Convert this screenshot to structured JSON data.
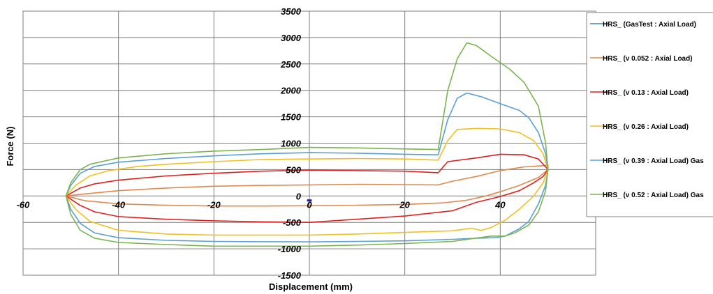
{
  "chart_data": {
    "type": "line",
    "title": "",
    "xlabel": "Displacement  (mm)",
    "ylabel": "Force  (N)",
    "xlim": [
      -60,
      60
    ],
    "ylim": [
      -1500,
      3500
    ],
    "x_ticks": [
      -60,
      -40,
      -20,
      0,
      20,
      40
    ],
    "x_tick_labels": [
      "-60",
      "-40",
      "-20",
      "0",
      "20",
      "40"
    ],
    "y_ticks": [
      -1500,
      -1000,
      -500,
      0,
      500,
      1000,
      1500,
      2000,
      2500,
      3000,
      3500
    ],
    "y_tick_labels": [
      "-1500",
      "-1000",
      "-500",
      "0",
      "500",
      "1000",
      "1500",
      "2000",
      "2500",
      "3000",
      "3500"
    ],
    "grid": true,
    "legend_position": "right",
    "series": [
      {
        "name": "HRS_ (GasTest : Axial Load)",
        "color": "#4f81bd",
        "points": [
          [
            -0.5,
            -85
          ],
          [
            0.5,
            -85
          ]
        ]
      },
      {
        "name": "HRS_ (v 0.052 : Axial Load)",
        "color": "#e0894e",
        "points": [
          [
            -51,
            0
          ],
          [
            -47,
            40
          ],
          [
            -40,
            100
          ],
          [
            -30,
            150
          ],
          [
            -20,
            185
          ],
          [
            -10,
            200
          ],
          [
            0,
            210
          ],
          [
            10,
            220
          ],
          [
            20,
            215
          ],
          [
            27,
            210
          ],
          [
            30,
            280
          ],
          [
            35,
            370
          ],
          [
            40,
            480
          ],
          [
            45,
            550
          ],
          [
            50,
            580
          ],
          [
            50,
            500
          ],
          [
            48,
            350
          ],
          [
            44,
            200
          ],
          [
            40,
            80
          ],
          [
            37,
            0
          ],
          [
            33,
            -80
          ],
          [
            28,
            -130
          ],
          [
            20,
            -160
          ],
          [
            10,
            -175
          ],
          [
            0,
            -185
          ],
          [
            -10,
            -190
          ],
          [
            -20,
            -190
          ],
          [
            -30,
            -175
          ],
          [
            -40,
            -150
          ],
          [
            -47,
            -90
          ],
          [
            -51,
            0
          ]
        ]
      },
      {
        "name": "HRS_ (v 0.13 : Axial Load)",
        "color": "#e02020",
        "points": [
          [
            -51,
            0
          ],
          [
            -48,
            150
          ],
          [
            -45,
            230
          ],
          [
            -40,
            300
          ],
          [
            -30,
            380
          ],
          [
            -20,
            430
          ],
          [
            -10,
            470
          ],
          [
            0,
            490
          ],
          [
            10,
            480
          ],
          [
            20,
            470
          ],
          [
            27,
            440
          ],
          [
            29,
            650
          ],
          [
            35,
            720
          ],
          [
            40,
            790
          ],
          [
            45,
            780
          ],
          [
            48,
            700
          ],
          [
            50,
            500
          ],
          [
            49,
            370
          ],
          [
            47,
            250
          ],
          [
            44,
            100
          ],
          [
            40,
            -10
          ],
          [
            35,
            -120
          ],
          [
            30,
            -280
          ],
          [
            20,
            -380
          ],
          [
            10,
            -440
          ],
          [
            0,
            -500
          ],
          [
            -10,
            -490
          ],
          [
            -20,
            -470
          ],
          [
            -30,
            -440
          ],
          [
            -40,
            -390
          ],
          [
            -45,
            -300
          ],
          [
            -48,
            -180
          ],
          [
            -51,
            0
          ]
        ]
      },
      {
        "name": "HRS_ (v 0.26 : Axial Load)",
        "color": "#f0c020",
        "points": [
          [
            -51,
            0
          ],
          [
            -49,
            200
          ],
          [
            -46,
            380
          ],
          [
            -42,
            480
          ],
          [
            -36,
            560
          ],
          [
            -30,
            600
          ],
          [
            -20,
            650
          ],
          [
            -10,
            690
          ],
          [
            0,
            700
          ],
          [
            10,
            710
          ],
          [
            20,
            700
          ],
          [
            27,
            680
          ],
          [
            29,
            1050
          ],
          [
            31,
            1260
          ],
          [
            35,
            1280
          ],
          [
            40,
            1270
          ],
          [
            44,
            1200
          ],
          [
            47,
            1050
          ],
          [
            49,
            800
          ],
          [
            50,
            500
          ],
          [
            49,
            250
          ],
          [
            47,
            0
          ],
          [
            44,
            -250
          ],
          [
            41,
            -460
          ],
          [
            38,
            -600
          ],
          [
            36,
            -650
          ],
          [
            34,
            -610
          ],
          [
            30,
            -660
          ],
          [
            20,
            -690
          ],
          [
            10,
            -720
          ],
          [
            0,
            -740
          ],
          [
            -10,
            -740
          ],
          [
            -20,
            -740
          ],
          [
            -30,
            -720
          ],
          [
            -40,
            -650
          ],
          [
            -46,
            -480
          ],
          [
            -49,
            -250
          ],
          [
            -51,
            0
          ]
        ]
      },
      {
        "name": "HRS_ (v 0.39 : Axial Load)  Gas",
        "color": "#5a9fd4",
        "points": [
          [
            -51,
            0
          ],
          [
            -50,
            200
          ],
          [
            -48,
            430
          ],
          [
            -45,
            560
          ],
          [
            -40,
            640
          ],
          [
            -30,
            710
          ],
          [
            -20,
            760
          ],
          [
            -10,
            800
          ],
          [
            0,
            820
          ],
          [
            10,
            810
          ],
          [
            20,
            790
          ],
          [
            27,
            780
          ],
          [
            29,
            1450
          ],
          [
            31,
            1850
          ],
          [
            33,
            1950
          ],
          [
            36,
            1880
          ],
          [
            40,
            1750
          ],
          [
            44,
            1620
          ],
          [
            46,
            1480
          ],
          [
            48,
            1200
          ],
          [
            49.5,
            800
          ],
          [
            50,
            500
          ],
          [
            49.5,
            200
          ],
          [
            48,
            -150
          ],
          [
            46,
            -480
          ],
          [
            44,
            -620
          ],
          [
            41,
            -760
          ],
          [
            39,
            -790
          ],
          [
            35,
            -800
          ],
          [
            30,
            -820
          ],
          [
            20,
            -850
          ],
          [
            10,
            -860
          ],
          [
            0,
            -870
          ],
          [
            -10,
            -865
          ],
          [
            -20,
            -860
          ],
          [
            -30,
            -840
          ],
          [
            -40,
            -790
          ],
          [
            -45,
            -700
          ],
          [
            -48,
            -520
          ],
          [
            -50,
            -250
          ],
          [
            -51,
            0
          ]
        ]
      },
      {
        "name": "HRS_ (v 0.52 : Axial Load)  Gas",
        "color": "#7cb450",
        "points": [
          [
            -51,
            0
          ],
          [
            -50,
            250
          ],
          [
            -48,
            500
          ],
          [
            -46,
            600
          ],
          [
            -40,
            720
          ],
          [
            -30,
            800
          ],
          [
            -20,
            850
          ],
          [
            -10,
            880
          ],
          [
            0,
            920
          ],
          [
            10,
            910
          ],
          [
            20,
            890
          ],
          [
            27,
            880
          ],
          [
            29,
            2000
          ],
          [
            31,
            2600
          ],
          [
            33,
            2900
          ],
          [
            35,
            2850
          ],
          [
            38,
            2650
          ],
          [
            42,
            2400
          ],
          [
            45,
            2150
          ],
          [
            48,
            1700
          ],
          [
            49.5,
            1000
          ],
          [
            50,
            500
          ],
          [
            49.5,
            100
          ],
          [
            48,
            -300
          ],
          [
            46,
            -550
          ],
          [
            43,
            -700
          ],
          [
            41,
            -760
          ],
          [
            38,
            -760
          ],
          [
            34,
            -810
          ],
          [
            30,
            -860
          ],
          [
            20,
            -900
          ],
          [
            10,
            -930
          ],
          [
            0,
            -950
          ],
          [
            -10,
            -950
          ],
          [
            -20,
            -950
          ],
          [
            -30,
            -920
          ],
          [
            -40,
            -880
          ],
          [
            -45,
            -800
          ],
          [
            -48,
            -650
          ],
          [
            -50,
            -350
          ],
          [
            -51,
            0
          ]
        ]
      }
    ]
  }
}
